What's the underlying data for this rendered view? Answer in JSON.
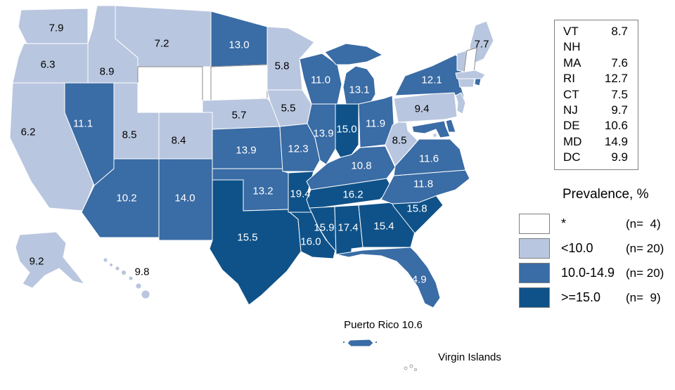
{
  "legend": {
    "title": "Prevalence, %",
    "items": [
      {
        "label": "*",
        "count": "(n=  4)",
        "color_key": "none"
      },
      {
        "label": "<10.0",
        "count": "(n= 20)",
        "color_key": "low"
      },
      {
        "label": "10.0-14.9",
        "count": "(n= 20)",
        "color_key": "mid"
      },
      {
        "label": ">=15.0",
        "count": "(n=  9)",
        "color_key": "high"
      }
    ]
  },
  "colors": {
    "none": "#ffffff",
    "low": "#b9c6df",
    "mid": "#3a6ca5",
    "high": "#0f5289",
    "state_border": "#ffffff",
    "outline_gray": "#8c8c8c",
    "label_on_light": "#000000",
    "label_on_dark": "#ffffff"
  },
  "side_panel": {
    "rows": [
      {
        "abbr": "VT",
        "value": "8.7"
      },
      {
        "abbr": "NH",
        "value": ""
      },
      {
        "abbr": "MA",
        "value": "7.6"
      },
      {
        "abbr": "RI",
        "value": "12.7"
      },
      {
        "abbr": "CT",
        "value": "7.5"
      },
      {
        "abbr": "NJ",
        "value": "9.7"
      },
      {
        "abbr": "DE",
        "value": "10.6"
      },
      {
        "abbr": "MD",
        "value": "14.9"
      },
      {
        "abbr": "DC",
        "value": "9.9"
      }
    ]
  },
  "islands": {
    "puerto_rico": "Puerto Rico 10.6",
    "virgin_islands": "Virgin Islands"
  },
  "states": [
    {
      "abbr": "WA",
      "value": "7.9",
      "cat": "low"
    },
    {
      "abbr": "OR",
      "value": "6.3",
      "cat": "low"
    },
    {
      "abbr": "CA",
      "value": "6.2",
      "cat": "low"
    },
    {
      "abbr": "ID",
      "value": "8.9",
      "cat": "low"
    },
    {
      "abbr": "NV",
      "value": "11.1",
      "cat": "mid"
    },
    {
      "abbr": "MT",
      "value": "7.2",
      "cat": "low"
    },
    {
      "abbr": "WY",
      "value": null,
      "cat": "none"
    },
    {
      "abbr": "UT",
      "value": "8.5",
      "cat": "low"
    },
    {
      "abbr": "CO",
      "value": "8.4",
      "cat": "low"
    },
    {
      "abbr": "AZ",
      "value": "10.2",
      "cat": "mid"
    },
    {
      "abbr": "NM",
      "value": "14.0",
      "cat": "mid"
    },
    {
      "abbr": "ND",
      "value": "13.0",
      "cat": "mid"
    },
    {
      "abbr": "SD",
      "value": null,
      "cat": "none"
    },
    {
      "abbr": "NE",
      "value": "5.7",
      "cat": "low"
    },
    {
      "abbr": "KS",
      "value": "13.9",
      "cat": "mid"
    },
    {
      "abbr": "OK",
      "value": "13.2",
      "cat": "mid"
    },
    {
      "abbr": "TX",
      "value": "15.5",
      "cat": "high"
    },
    {
      "abbr": "MN",
      "value": "5.8",
      "cat": "low"
    },
    {
      "abbr": "IA",
      "value": "5.5",
      "cat": "low"
    },
    {
      "abbr": "MO",
      "value": "12.3",
      "cat": "mid"
    },
    {
      "abbr": "AR",
      "value": "19.4",
      "cat": "high"
    },
    {
      "abbr": "LA",
      "value": "16.0",
      "cat": "high"
    },
    {
      "abbr": "WI",
      "value": "11.0",
      "cat": "mid"
    },
    {
      "abbr": "IL",
      "value": "13.9",
      "cat": "mid"
    },
    {
      "abbr": "MI",
      "value": "13.1",
      "cat": "mid"
    },
    {
      "abbr": "IN",
      "value": "15.0",
      "cat": "high"
    },
    {
      "abbr": "OH",
      "value": "11.9",
      "cat": "mid"
    },
    {
      "abbr": "KY",
      "value": "10.8",
      "cat": "mid"
    },
    {
      "abbr": "TN",
      "value": "16.2",
      "cat": "high"
    },
    {
      "abbr": "MS",
      "value": "15.9",
      "cat": "high"
    },
    {
      "abbr": "AL",
      "value": "17.4",
      "cat": "high"
    },
    {
      "abbr": "GA",
      "value": "15.4",
      "cat": "high"
    },
    {
      "abbr": "FL",
      "value": "14.9",
      "cat": "mid"
    },
    {
      "abbr": "SC",
      "value": "15.8",
      "cat": "high"
    },
    {
      "abbr": "NC",
      "value": "11.8",
      "cat": "mid"
    },
    {
      "abbr": "VA",
      "value": "11.6",
      "cat": "mid"
    },
    {
      "abbr": "WV",
      "value": "8.5",
      "cat": "low"
    },
    {
      "abbr": "PA",
      "value": "9.4",
      "cat": "low"
    },
    {
      "abbr": "NY",
      "value": "12.1",
      "cat": "mid"
    },
    {
      "abbr": "ME",
      "value": "7.7",
      "cat": "low"
    },
    {
      "abbr": "VT",
      "value": "8.7",
      "cat": "low"
    },
    {
      "abbr": "NH",
      "value": null,
      "cat": "none"
    },
    {
      "abbr": "MA",
      "value": "7.6",
      "cat": "low"
    },
    {
      "abbr": "RI",
      "value": "12.7",
      "cat": "mid"
    },
    {
      "abbr": "CT",
      "value": "7.5",
      "cat": "low"
    },
    {
      "abbr": "NJ",
      "value": "9.7",
      "cat": "low"
    },
    {
      "abbr": "DE",
      "value": "10.6",
      "cat": "mid"
    },
    {
      "abbr": "MD",
      "value": "14.9",
      "cat": "mid"
    },
    {
      "abbr": "DC",
      "value": "9.9",
      "cat": "low"
    },
    {
      "abbr": "PR",
      "value": "10.6",
      "cat": "mid"
    },
    {
      "abbr": "VI",
      "value": null,
      "cat": "none"
    },
    {
      "abbr": "AK",
      "value": "9.2",
      "cat": "low"
    },
    {
      "abbr": "HI",
      "value": "9.8",
      "cat": "low"
    }
  ]
}
